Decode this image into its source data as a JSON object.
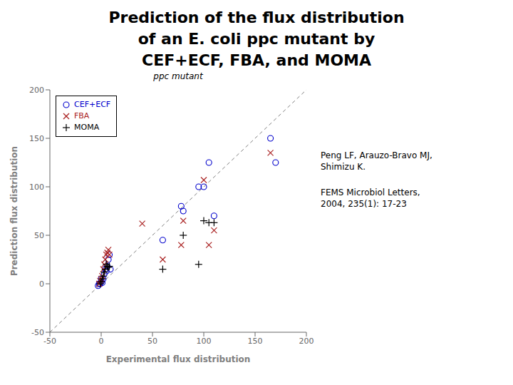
{
  "chart_data": {
    "type": "scatter",
    "title": "Prediction of the flux distribution\nof an E. coli ppc mutant by\nCEF+ECF, FBA, and MOMA",
    "subtitle": "ppc mutant",
    "xlabel": "Experimental flux distribution",
    "ylabel": "Prediction flux distribution",
    "xlim": [
      -50,
      200
    ],
    "ylim": [
      -50,
      200
    ],
    "xticks": [
      -50,
      0,
      50,
      100,
      150,
      200
    ],
    "yticks": [
      -50,
      0,
      50,
      100,
      150,
      200
    ],
    "grid": false,
    "legend": "upper left",
    "annotations": [
      "Peng LF, Arauzo-Bravo MJ,\nShimizu K.",
      "FEMS Microbiol Letters,\n2004, 235(1): 17-23"
    ],
    "series": [
      {
        "name": "CEF+ECF",
        "color": "#0000CC",
        "marker": "circle",
        "x": [
          -3,
          -2,
          -1,
          0,
          0,
          1,
          2,
          3,
          4,
          5,
          6,
          7,
          8,
          9,
          60,
          78,
          80,
          95,
          100,
          105,
          110,
          165,
          170
        ],
        "values": [
          -2,
          0,
          0,
          2,
          5,
          1,
          5,
          10,
          15,
          13,
          18,
          25,
          30,
          15,
          45,
          80,
          75,
          100,
          100,
          125,
          70,
          150,
          125
        ]
      },
      {
        "name": "FBA",
        "color": "#AA2222",
        "marker": "x",
        "x": [
          -2,
          -1,
          0,
          1,
          2,
          3,
          4,
          5,
          6,
          7,
          8,
          40,
          60,
          78,
          80,
          100,
          105,
          110,
          165
        ],
        "values": [
          0,
          3,
          5,
          8,
          15,
          20,
          25,
          30,
          32,
          35,
          30,
          62,
          25,
          40,
          65,
          107,
          40,
          55,
          135
        ]
      },
      {
        "name": "MOMA",
        "color": "#000000",
        "marker": "plus",
        "x": [
          -1,
          0,
          1,
          2,
          3,
          4,
          5,
          6,
          7,
          8,
          60,
          80,
          95,
          100,
          105,
          110
        ],
        "values": [
          0,
          2,
          5,
          8,
          12,
          15,
          20,
          18,
          17,
          18,
          15,
          50,
          20,
          65,
          63,
          63
        ]
      }
    ]
  }
}
